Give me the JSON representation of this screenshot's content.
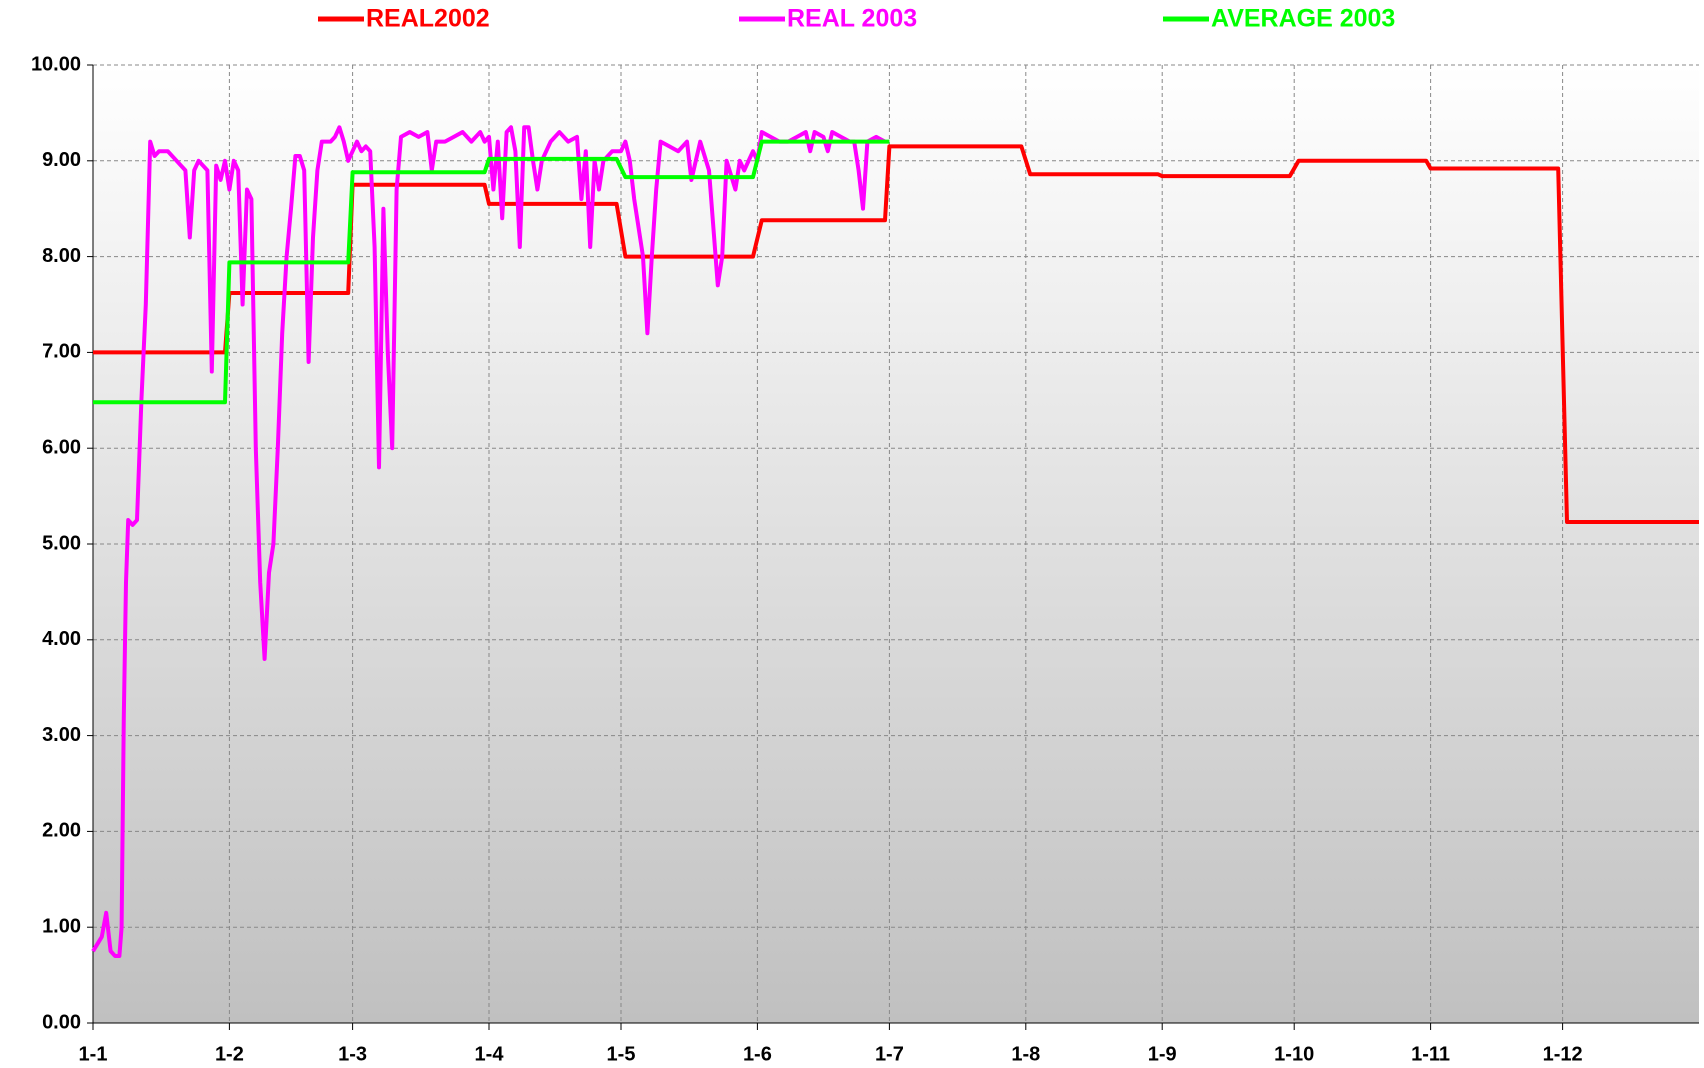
{
  "chart_data": {
    "type": "line",
    "xlim": [
      0,
      365
    ],
    "xticks": [
      {
        "value": 0,
        "label": "1-1"
      },
      {
        "value": 31,
        "label": "1-2"
      },
      {
        "value": 59,
        "label": "1-3"
      },
      {
        "value": 90,
        "label": "1-4"
      },
      {
        "value": 120,
        "label": "1-5"
      },
      {
        "value": 151,
        "label": "1-6"
      },
      {
        "value": 181,
        "label": "1-7"
      },
      {
        "value": 212,
        "label": "1-8"
      },
      {
        "value": 243,
        "label": "1-9"
      },
      {
        "value": 273,
        "label": "1-10"
      },
      {
        "value": 304,
        "label": "1-11"
      },
      {
        "value": 334,
        "label": "1-12"
      }
    ],
    "ylim": [
      0,
      10
    ],
    "yticks": [
      {
        "value": 0,
        "label": "0.00"
      },
      {
        "value": 1,
        "label": "1.00"
      },
      {
        "value": 2,
        "label": "2.00"
      },
      {
        "value": 3,
        "label": "3.00"
      },
      {
        "value": 4,
        "label": "4.00"
      },
      {
        "value": 5,
        "label": "5.00"
      },
      {
        "value": 6,
        "label": "6.00"
      },
      {
        "value": 7,
        "label": "7.00"
      },
      {
        "value": 8,
        "label": "8.00"
      },
      {
        "value": 9,
        "label": "9.00"
      },
      {
        "value": 10,
        "label": "10.00"
      }
    ],
    "grid": true,
    "series": [
      {
        "name": "REAL2002",
        "color": "#ff0000",
        "x": [
          0,
          30,
          31,
          58,
          59,
          89,
          90,
          119,
          121,
          150,
          152,
          180,
          181,
          211,
          213,
          242,
          243,
          272,
          274,
          303,
          304,
          333,
          335,
          365
        ],
        "values": [
          7.0,
          7.0,
          7.62,
          7.62,
          8.75,
          8.75,
          8.55,
          8.55,
          8.0,
          8.0,
          8.38,
          8.38,
          9.15,
          9.15,
          8.86,
          8.86,
          8.84,
          8.84,
          9.0,
          9.0,
          8.92,
          8.92,
          5.23,
          5.23
        ]
      },
      {
        "name": "REAL 2003",
        "color": "#ff00ff",
        "x": [
          0,
          2,
          3,
          4,
          5,
          6,
          6.5,
          7,
          7.5,
          8,
          9,
          10,
          11,
          12,
          13,
          14,
          15,
          17,
          19,
          21,
          22,
          23,
          24,
          26,
          27,
          28,
          29,
          30,
          31,
          32,
          33,
          34,
          35,
          36,
          37,
          38,
          39,
          40,
          41,
          42,
          43,
          44,
          45,
          46,
          47,
          48,
          49,
          50,
          51,
          52,
          53,
          54,
          55,
          56,
          57,
          58,
          59,
          60,
          61,
          62,
          63,
          64,
          65,
          66,
          67,
          68,
          69,
          70,
          72,
          74,
          76,
          77,
          78,
          80,
          82,
          84,
          86,
          88,
          89,
          90,
          91,
          92,
          93,
          94,
          95,
          96,
          97,
          98,
          99,
          100,
          101,
          102,
          104,
          106,
          108,
          110,
          111,
          112,
          113,
          114,
          115,
          116,
          118,
          120,
          121,
          122,
          123,
          124,
          125,
          126,
          127,
          128,
          129,
          131,
          133,
          135,
          136,
          138,
          140,
          141,
          142,
          143,
          144,
          146,
          147,
          148,
          150,
          151,
          152,
          154,
          156,
          158,
          160,
          162,
          163,
          164,
          166,
          167,
          168,
          170,
          172,
          173,
          174,
          175,
          176,
          178,
          180
        ],
        "values": [
          0.75,
          0.9,
          1.15,
          0.75,
          0.7,
          0.7,
          1.0,
          3.2,
          4.6,
          5.25,
          5.2,
          5.25,
          6.5,
          7.5,
          9.2,
          9.05,
          9.1,
          9.1,
          9.0,
          8.9,
          8.2,
          8.9,
          9.0,
          8.9,
          6.8,
          8.95,
          8.8,
          9.0,
          8.7,
          9.0,
          8.9,
          7.5,
          8.7,
          8.6,
          6.0,
          4.6,
          3.8,
          4.7,
          5.0,
          6.0,
          7.2,
          8.0,
          8.5,
          9.05,
          9.05,
          8.9,
          6.9,
          8.2,
          8.9,
          9.2,
          9.2,
          9.2,
          9.25,
          9.35,
          9.2,
          9.0,
          9.1,
          9.2,
          9.1,
          9.15,
          9.1,
          8.1,
          5.8,
          8.5,
          7.0,
          6.0,
          8.7,
          9.25,
          9.3,
          9.25,
          9.3,
          8.9,
          9.2,
          9.2,
          9.25,
          9.3,
          9.2,
          9.3,
          9.2,
          9.25,
          8.7,
          9.2,
          8.4,
          9.3,
          9.35,
          9.1,
          8.1,
          9.35,
          9.35,
          9.0,
          8.7,
          9.0,
          9.2,
          9.3,
          9.2,
          9.25,
          8.6,
          9.1,
          8.1,
          9.0,
          8.7,
          9.0,
          9.1,
          9.1,
          9.2,
          9.0,
          8.6,
          8.3,
          8.0,
          7.2,
          8.0,
          8.7,
          9.2,
          9.15,
          9.1,
          9.2,
          8.8,
          9.2,
          8.9,
          8.3,
          7.7,
          8.0,
          9.0,
          8.7,
          9.0,
          8.9,
          9.1,
          9.0,
          9.3,
          9.25,
          9.2,
          9.2,
          9.25,
          9.3,
          9.1,
          9.3,
          9.25,
          9.1,
          9.3,
          9.25,
          9.2,
          9.2,
          8.9,
          8.5,
          9.2,
          9.25,
          9.2
        ]
      },
      {
        "name": "AVERAGE 2003",
        "color": "#00ff00",
        "x": [
          0,
          30,
          31,
          58,
          59,
          89,
          90,
          119,
          121,
          150,
          152,
          181
        ],
        "values": [
          6.48,
          6.48,
          7.94,
          7.94,
          8.88,
          8.88,
          9.02,
          9.02,
          8.83,
          8.83,
          9.2,
          9.2
        ]
      }
    ]
  }
}
